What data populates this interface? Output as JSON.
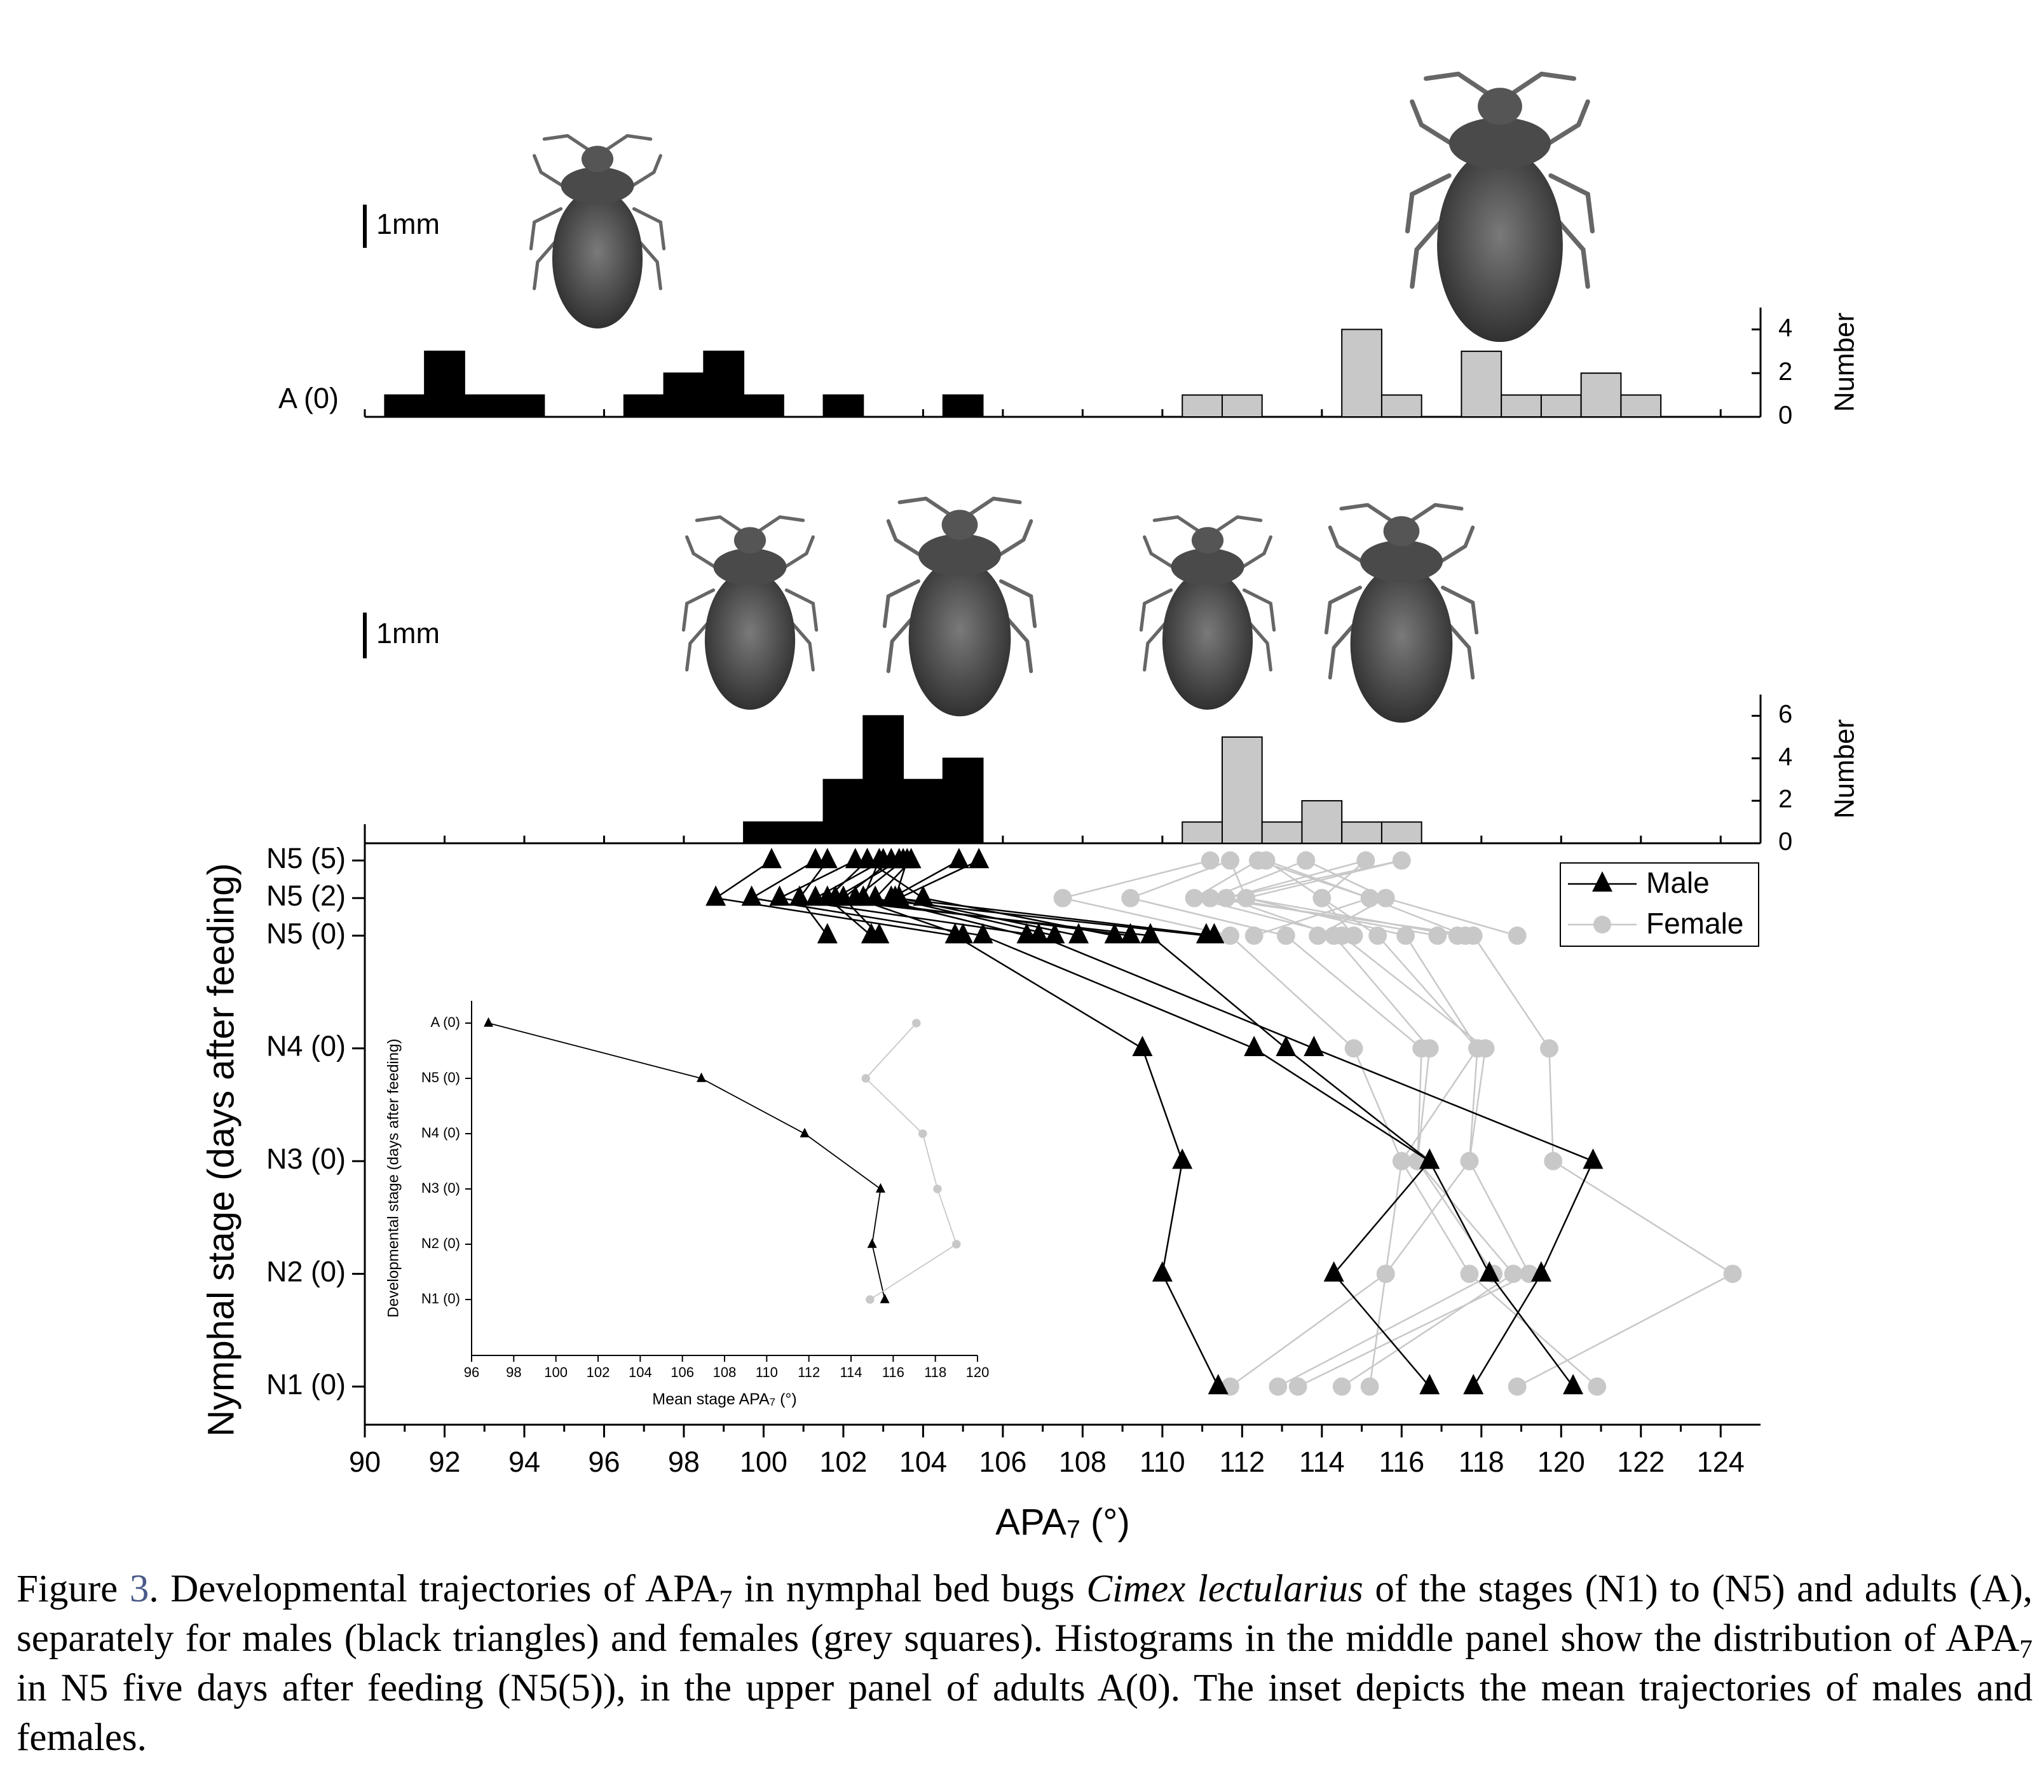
{
  "figure": {
    "caption": [
      "Figure ",
      "3",
      ". Developmental trajectories of APA",
      "7",
      " in nymphal bed bugs ",
      "Cimex lectularius",
      " of the stages (N1) to (N5) and adults (A), separately for males (black triangles) and females (grey squares). Histograms in the middle panel show the distribution of APA",
      "7",
      " in N5 five days after feeding (N5(5)), in the upper panel of adults A(0). The inset depicts the mean trajectories of males and females."
    ]
  },
  "chart_data": [
    {
      "type": "histogram",
      "row_label": "A (0)",
      "scale_label": "1mm",
      "y_label": "Number",
      "xlim": [
        90,
        125
      ],
      "bins": [
        90.5,
        91.5,
        92.5,
        93.5,
        94.5,
        95.5,
        96.5,
        97.5,
        98.5,
        99.5,
        100.5,
        101.5,
        102.5,
        103.5,
        104.5,
        105.5,
        106.5,
        107.5,
        108.5,
        109.5,
        110.5,
        111.5,
        112.5,
        113.5,
        114.5,
        115.5,
        116.5,
        117.5,
        118.5,
        119.5,
        120.5,
        121.5,
        122.5
      ],
      "series": [
        {
          "color": "#000000",
          "values": [
            1,
            3,
            1,
            1,
            0,
            0,
            1,
            2,
            3,
            1,
            0,
            1,
            0,
            0,
            1,
            0,
            0,
            0,
            0,
            0,
            0,
            0,
            0,
            0,
            0,
            0,
            0,
            0,
            0,
            0,
            0,
            0
          ]
        },
        {
          "color": "#c8c8c8",
          "values": [
            0,
            0,
            0,
            0,
            0,
            0,
            0,
            0,
            0,
            0,
            0,
            0,
            0,
            0,
            0,
            0,
            0,
            0,
            0,
            0,
            1,
            1,
            0,
            0,
            4,
            1,
            0,
            3,
            1,
            1,
            2,
            1
          ]
        }
      ],
      "ylim": [
        0,
        5
      ],
      "yticks": [
        0,
        2,
        4
      ]
    },
    {
      "type": "histogram",
      "scale_label": "1mm",
      "y_label": "Number",
      "xlim": [
        90,
        125
      ],
      "bins": [
        90.5,
        91.5,
        92.5,
        93.5,
        94.5,
        95.5,
        96.5,
        97.5,
        98.5,
        99.5,
        100.5,
        101.5,
        102.5,
        103.5,
        104.5,
        105.5,
        106.5,
        107.5,
        108.5,
        109.5,
        110.5,
        111.5,
        112.5,
        113.5,
        114.5,
        115.5,
        116.5,
        117.5,
        118.5,
        119.5,
        120.5,
        121.5,
        122.5
      ],
      "series": [
        {
          "color": "#000000",
          "values": [
            0,
            0,
            0,
            0,
            0,
            0,
            0,
            0,
            0,
            1,
            1,
            3,
            6,
            3,
            4,
            0,
            0,
            0,
            0,
            0,
            0,
            0,
            0,
            0,
            0,
            0,
            0,
            0,
            0,
            0,
            0,
            0
          ]
        },
        {
          "color": "#c8c8c8",
          "values": [
            0,
            0,
            0,
            0,
            0,
            0,
            0,
            0,
            0,
            0,
            0,
            0,
            0,
            0,
            0,
            0,
            0,
            0,
            0,
            0,
            1,
            5,
            1,
            2,
            1,
            1,
            0,
            0,
            0,
            0,
            0,
            0
          ]
        }
      ],
      "ylim": [
        0,
        7
      ],
      "yticks": [
        0,
        2,
        4,
        6
      ]
    },
    {
      "type": "trajectory",
      "x_label": [
        "APA",
        "7",
        " (°)"
      ],
      "y_label": "Nymphal stage (days after feeding)",
      "categories": [
        "N1 (0)",
        "N2 (0)",
        "N3 (0)",
        "N4 (0)",
        "N5 (0)",
        "N5 (2)",
        "N5 (5)"
      ],
      "xlim": [
        90,
        125
      ],
      "xticks": [
        90,
        92,
        94,
        96,
        98,
        100,
        102,
        104,
        106,
        108,
        110,
        112,
        114,
        116,
        118,
        120,
        122,
        124
      ],
      "legend": "top-right",
      "series": [
        {
          "name": "Female",
          "color": "#c8c8c8",
          "marker": "circle",
          "tracks": [
            [
              111.7,
              115.6,
              116.0,
              114.8,
              111.7,
              107.5,
              111.2
            ],
            [
              112.9,
              118.3,
              116.4,
              116.5,
              113.1,
              109.2,
              111.7
            ],
            [
              113.4,
              119.2,
              117.7,
              118.1,
              114.5,
              110.8,
              112.4
            ],
            [
              118.9,
              124.3,
              119.8,
              119.7,
              117.8,
              111.2,
              113.6
            ],
            [
              120.9,
              117.7,
              116.0,
              117.9,
              116.1,
              112.1,
              116.0
            ],
            [
              114.5,
              118.8,
              116.4,
              116.7,
              114.3,
              111.6,
              115.1
            ],
            [
              115.2,
              115.6,
              117.7,
              117.9,
              115.4,
              114.0,
              112.6
            ],
            [
              null,
              null,
              null,
              null,
              112.3,
              115.2,
              112.6
            ],
            [
              null,
              null,
              null,
              null,
              113.9,
              115.6,
              113.6
            ],
            [
              null,
              null,
              null,
              null,
              114.8,
              114.0,
              115.1
            ],
            [
              null,
              null,
              null,
              null,
              116.9,
              111.6,
              116.0
            ],
            [
              null,
              null,
              null,
              null,
              117.4,
              112.1,
              111.7
            ],
            [
              null,
              null,
              null,
              null,
              117.6,
              115.2,
              112.4
            ],
            [
              null,
              null,
              null,
              null,
              118.9,
              115.6,
              113.6
            ]
          ]
        },
        {
          "name": "Male",
          "color": "#000000",
          "marker": "triangle",
          "tracks": [
            [
              111.4,
              110.0,
              110.5,
              109.5,
              104.8,
              98.8,
              100.2
            ],
            [
              116.7,
              114.3,
              116.7,
              112.3,
              105.5,
              99.7,
              101.3
            ],
            [
              117.8,
              119.5,
              120.8,
              113.8,
              106.9,
              100.4,
              102.3
            ],
            [
              120.3,
              118.2,
              116.7,
              113.1,
              109.7,
              101.3,
              103.0
            ],
            [
              null,
              null,
              null,
              null,
              101.6,
              100.9,
              101.6
            ],
            [
              null,
              null,
              null,
              null,
              102.7,
              101.6,
              102.6
            ],
            [
              null,
              null,
              null,
              null,
              102.9,
              102.0,
              103.2
            ],
            [
              null,
              null,
              null,
              null,
              105.0,
              102.3,
              103.5
            ],
            [
              null,
              null,
              null,
              null,
              106.6,
              102.8,
              103.7
            ],
            [
              null,
              null,
              null,
              null,
              107.3,
              103.2,
              104.9
            ],
            [
              null,
              null,
              null,
              null,
              107.9,
              103.4,
              105.4
            ],
            [
              null,
              null,
              null,
              null,
              108.8,
              104.0,
              102.6
            ],
            [
              null,
              null,
              null,
              null,
              109.2,
              101.8,
              103.4
            ],
            [
              null,
              null,
              null,
              null,
              111.1,
              102.5,
              102.9
            ],
            [
              null,
              null,
              null,
              null,
              111.3,
              103.3,
              103.6
            ]
          ]
        }
      ]
    },
    {
      "type": "inset",
      "x_label": [
        "Mean stage APA",
        "7",
        " (°)"
      ],
      "y_label": "Developmental stage (days after feeding)",
      "categories": [
        "N1 (0)",
        "N2 (0)",
        "N3 (0)",
        "N4 (0)",
        "N5 (0)",
        "A (0)"
      ],
      "xlim": [
        96,
        120
      ],
      "xticks": [
        96,
        98,
        100,
        102,
        104,
        106,
        108,
        110,
        112,
        114,
        116,
        118,
        120
      ],
      "series": [
        {
          "color": "#000000",
          "marker": "triangle",
          "values": [
            115.6,
            115.0,
            115.4,
            111.8,
            106.9,
            96.8
          ]
        },
        {
          "color": "#c8c8c8",
          "marker": "circle",
          "values": [
            114.9,
            119.0,
            118.1,
            117.4,
            114.7,
            117.1
          ]
        }
      ]
    }
  ]
}
